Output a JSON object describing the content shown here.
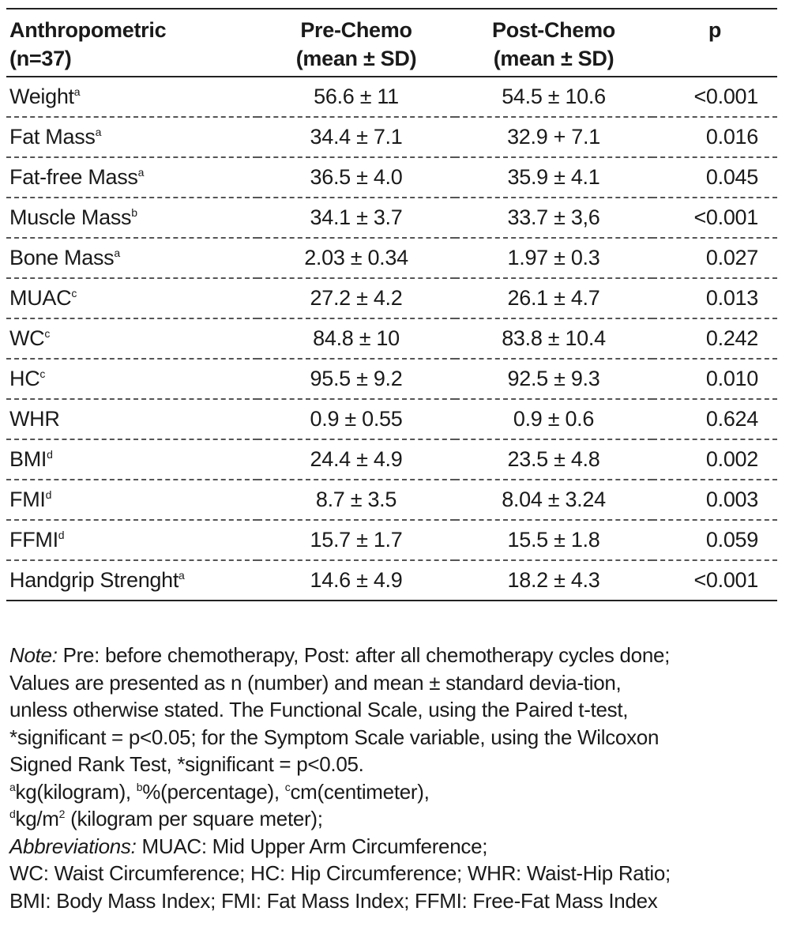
{
  "table": {
    "headers": [
      [
        "Anthropometric",
        "(n=37)"
      ],
      [
        "Pre-Chemo",
        "(mean ± SD)"
      ],
      [
        "Post-Chemo",
        "(mean ± SD)"
      ],
      [
        "p",
        ""
      ]
    ],
    "rows": [
      {
        "name": "Weight",
        "sup": "a",
        "pre": "56.6 ± 11",
        "post": "54.5 ± 10.6",
        "p": "<0.001"
      },
      {
        "name": "Fat Mass",
        "sup": "a",
        "pre": "34.4 ± 7.1",
        "post": "32.9 + 7.1",
        "p": "0.016"
      },
      {
        "name": "Fat-free Mass",
        "sup": "a",
        "pre": "36.5 ± 4.0",
        "post": "35.9 ± 4.1",
        "p": "0.045"
      },
      {
        "name": "Muscle Mass",
        "sup": "b",
        "pre": "34.1 ± 3.7",
        "post": "33.7 ± 3,6",
        "p": "<0.001"
      },
      {
        "name": "Bone Mass",
        "sup": "a",
        "pre": "2.03 ± 0.34",
        "post": "1.97 ± 0.3",
        "p": "0.027"
      },
      {
        "name": "MUAC",
        "sup": "c",
        "pre": "27.2 ± 4.2",
        "post": "26.1 ± 4.7",
        "p": "0.013"
      },
      {
        "name": "WC",
        "sup": "c",
        "pre": "84.8 ± 10",
        "post": "83.8 ± 10.4",
        "p": "0.242"
      },
      {
        "name": "HC",
        "sup": "c",
        "pre": "95.5 ± 9.2",
        "post": "92.5 ± 9.3",
        "p": "0.010"
      },
      {
        "name": "WHR",
        "sup": "",
        "pre": "0.9 ± 0.55",
        "post": "0.9 ± 0.6",
        "p": "0.624"
      },
      {
        "name": "BMI",
        "sup": "d",
        "pre": "24.4 ± 4.9",
        "post": "23.5 ± 4.8",
        "p": "0.002"
      },
      {
        "name": "FMI",
        "sup": "d",
        "pre": "8.7 ± 3.5",
        "post": "8.04 ± 3.24",
        "p": "0.003"
      },
      {
        "name": "FFMI",
        "sup": "d",
        "pre": "15.7 ± 1.7",
        "post": "15.5 ± 1.8",
        "p": "0.059"
      },
      {
        "name": "Handgrip Strenght",
        "sup": "a",
        "pre": "14.6 ± 4.9",
        "post": "18.2 ± 4.3",
        "p": "<0.001"
      }
    ]
  },
  "notes": {
    "note_label": "Note:",
    "note_lines": [
      " Pre: before chemotherapy, Post: after all chemotherapy cycles done;",
      "Values are presented as n (number) and mean ± standard devia-tion,",
      "unless otherwise stated. The Functional Scale, using the Paired t-test,",
      "*significant = p<0.05; for the Symptom Scale variable, using the Wilcoxon",
      "Signed Rank Test, *significant = p<0.05."
    ],
    "units": {
      "a_sup": "a",
      "a_text": "kg(kilogram), ",
      "b_sup": "b",
      "b_text": "%(percentage), ",
      "c_sup": "c",
      "c_text": "cm(centimeter),",
      "d_sup": "d",
      "d_text": "kg/m",
      "d_exp": "2",
      "d_rest": " (kilogram per square meter);"
    },
    "abbr_label": "Abbreviations:",
    "abbr_lines": [
      " MUAC: Mid Upper Arm Circumference;",
      "WC: Waist Circumference; HC: Hip Circumference; WHR: Waist-Hip Ratio;",
      "BMI: Body Mass Index; FMI: Fat Mass Index; FFMI: Free-Fat Mass Index"
    ]
  }
}
